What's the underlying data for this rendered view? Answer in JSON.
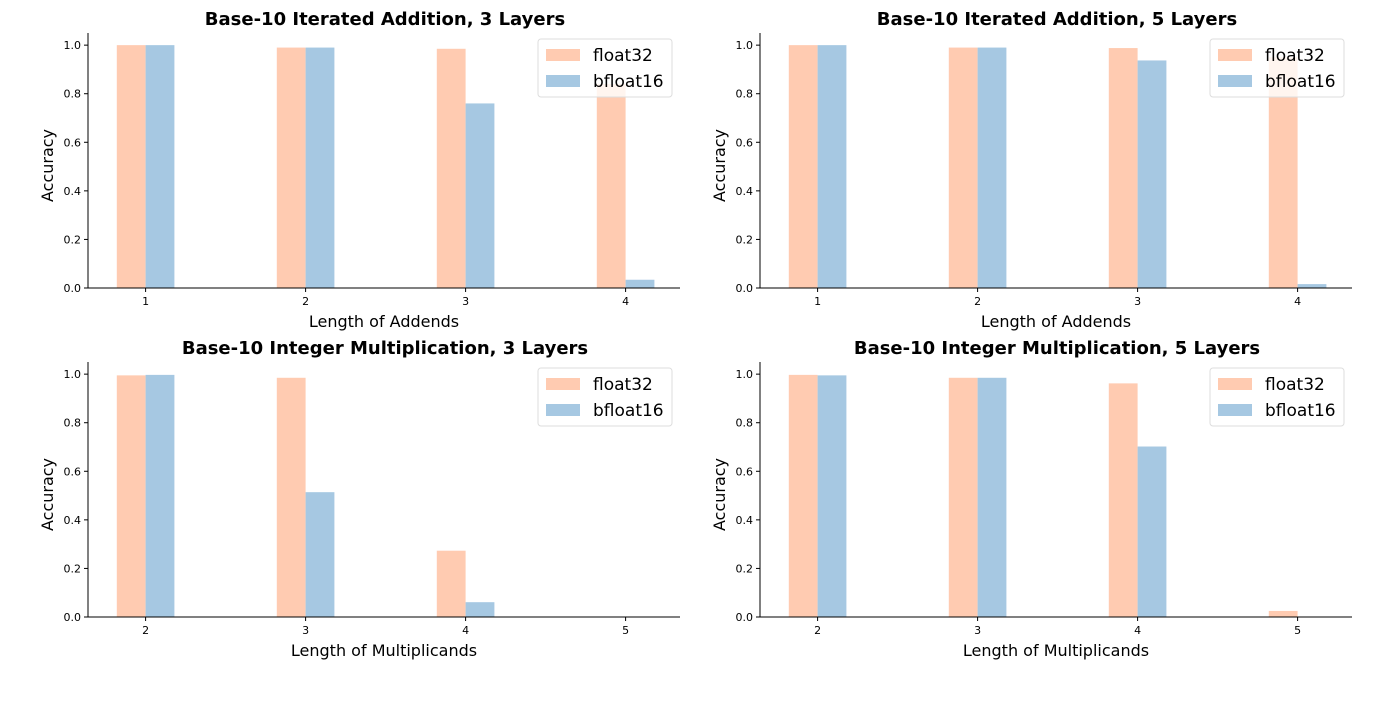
{
  "colors": {
    "float32": "#ffcbb1",
    "bfloat16": "#a6c8e2"
  },
  "chart_data": [
    {
      "type": "bar",
      "title": "Base-10 Iterated Addition, 3 Layers",
      "xlabel": "Length of Addends",
      "ylabel": "Accuracy",
      "categories": [
        "1",
        "2",
        "3",
        "4"
      ],
      "ylim": [
        0,
        1.05
      ],
      "yticks": [
        "0.0",
        "0.2",
        "0.4",
        "0.6",
        "0.8",
        "1.0"
      ],
      "legend": "top-right",
      "series": [
        {
          "name": "float32",
          "values": [
            1.0,
            0.99,
            0.985,
            0.84
          ]
        },
        {
          "name": "bfloat16",
          "values": [
            1.0,
            0.99,
            0.76,
            0.034
          ]
        }
      ]
    },
    {
      "type": "bar",
      "title": "Base-10 Iterated Addition, 5 Layers",
      "xlabel": "Length of Addends",
      "ylabel": "Accuracy",
      "categories": [
        "1",
        "2",
        "3",
        "4"
      ],
      "ylim": [
        0,
        1.05
      ],
      "yticks": [
        "0.0",
        "0.2",
        "0.4",
        "0.6",
        "0.8",
        "1.0"
      ],
      "legend": "top-right",
      "series": [
        {
          "name": "float32",
          "values": [
            1.0,
            0.99,
            0.988,
            0.95
          ]
        },
        {
          "name": "bfloat16",
          "values": [
            1.0,
            0.99,
            0.937,
            0.016
          ]
        }
      ]
    },
    {
      "type": "bar",
      "title": "Base-10 Integer Multiplication, 3 Layers",
      "xlabel": "Length of Multiplicands",
      "ylabel": "Accuracy",
      "categories": [
        "2",
        "3",
        "4",
        "5"
      ],
      "ylim": [
        0,
        1.05
      ],
      "yticks": [
        "0.0",
        "0.2",
        "0.4",
        "0.6",
        "0.8",
        "1.0"
      ],
      "legend": "top-right",
      "series": [
        {
          "name": "float32",
          "values": [
            0.995,
            0.985,
            0.273,
            0.0
          ]
        },
        {
          "name": "bfloat16",
          "values": [
            0.997,
            0.514,
            0.061,
            0.0
          ]
        }
      ]
    },
    {
      "type": "bar",
      "title": "Base-10 Integer Multiplication, 5 Layers",
      "xlabel": "Length of Multiplicands",
      "ylabel": "Accuracy",
      "categories": [
        "2",
        "3",
        "4",
        "5"
      ],
      "ylim": [
        0,
        1.05
      ],
      "yticks": [
        "0.0",
        "0.2",
        "0.4",
        "0.6",
        "0.8",
        "1.0"
      ],
      "legend": "top-right",
      "series": [
        {
          "name": "float32",
          "values": [
            0.997,
            0.985,
            0.962,
            0.025
          ]
        },
        {
          "name": "bfloat16",
          "values": [
            0.995,
            0.985,
            0.702,
            0.0
          ]
        }
      ]
    }
  ]
}
